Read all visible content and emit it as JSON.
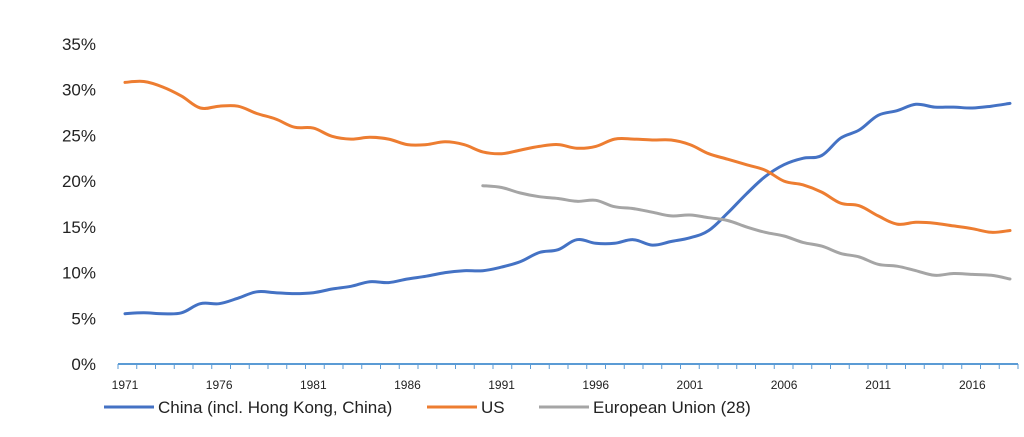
{
  "chart_data": {
    "type": "line",
    "title": "",
    "xlabel": "",
    "ylabel": "",
    "xlim": [
      1971,
      2018
    ],
    "ylim": [
      0,
      35
    ],
    "y_ticks": [
      0,
      5,
      10,
      15,
      20,
      25,
      30,
      35
    ],
    "y_tick_labels": [
      "0%",
      "5%",
      "10%",
      "15%",
      "20%",
      "25%",
      "30%",
      "35%"
    ],
    "x_tick_labels": [
      "1971",
      "1976",
      "1981",
      "1986",
      "1991",
      "1996",
      "2001",
      "2006",
      "2011",
      "2016"
    ],
    "x_ticks": [
      1971,
      1976,
      1981,
      1986,
      1991,
      1996,
      2001,
      2006,
      2011,
      2016
    ],
    "grid": false,
    "legend_position": "bottom",
    "series": [
      {
        "name": "China (incl. Hong Kong, China)",
        "color": "#4472c4",
        "x": [
          1971,
          1972,
          1973,
          1974,
          1975,
          1976,
          1977,
          1978,
          1979,
          1980,
          1981,
          1982,
          1983,
          1984,
          1985,
          1986,
          1987,
          1988,
          1989,
          1990,
          1991,
          1992,
          1993,
          1994,
          1995,
          1996,
          1997,
          1998,
          1999,
          2000,
          2001,
          2002,
          2003,
          2004,
          2005,
          2006,
          2007,
          2008,
          2009,
          2010,
          2011,
          2012,
          2013,
          2014,
          2015,
          2016,
          2017,
          2018
        ],
        "values": [
          5.5,
          5.6,
          5.5,
          5.6,
          6.6,
          6.6,
          7.2,
          7.9,
          7.8,
          7.7,
          7.8,
          8.2,
          8.5,
          9.0,
          8.9,
          9.3,
          9.6,
          10.0,
          10.2,
          10.2,
          10.6,
          11.2,
          12.2,
          12.5,
          13.6,
          13.2,
          13.2,
          13.6,
          13.0,
          13.4,
          13.8,
          14.6,
          16.5,
          18.6,
          20.5,
          21.8,
          22.5,
          22.8,
          24.7,
          25.6,
          27.2,
          27.7,
          28.4,
          28.1,
          28.1,
          28.0,
          28.2,
          28.5
        ]
      },
      {
        "name": "US",
        "color": "#ed7d31",
        "x": [
          1971,
          1972,
          1973,
          1974,
          1975,
          1976,
          1977,
          1978,
          1979,
          1980,
          1981,
          1982,
          1983,
          1984,
          1985,
          1986,
          1987,
          1988,
          1989,
          1990,
          1991,
          1992,
          1993,
          1994,
          1995,
          1996,
          1997,
          1998,
          1999,
          2000,
          2001,
          2002,
          2003,
          2004,
          2005,
          2006,
          2007,
          2008,
          2009,
          2010,
          2011,
          2012,
          2013,
          2014,
          2015,
          2016,
          2017,
          2018
        ],
        "values": [
          30.8,
          30.9,
          30.3,
          29.3,
          28.0,
          28.2,
          28.2,
          27.4,
          26.8,
          25.9,
          25.8,
          24.9,
          24.6,
          24.8,
          24.6,
          24.0,
          24.0,
          24.3,
          24.0,
          23.2,
          23.0,
          23.4,
          23.8,
          24.0,
          23.6,
          23.8,
          24.6,
          24.6,
          24.5,
          24.5,
          24.0,
          23.0,
          22.4,
          21.8,
          21.2,
          20.0,
          19.6,
          18.8,
          17.6,
          17.3,
          16.2,
          15.3,
          15.5,
          15.4,
          15.1,
          14.8,
          14.4,
          14.6
        ]
      },
      {
        "name": "European Union (28)",
        "color": "#a5a5a5",
        "x": [
          1990,
          1991,
          1992,
          1993,
          1994,
          1995,
          1996,
          1997,
          1998,
          1999,
          2000,
          2001,
          2002,
          2003,
          2004,
          2005,
          2006,
          2007,
          2008,
          2009,
          2010,
          2011,
          2012,
          2013,
          2014,
          2015,
          2016,
          2017,
          2018
        ],
        "values": [
          19.5,
          19.3,
          18.7,
          18.3,
          18.1,
          17.8,
          17.9,
          17.2,
          17.0,
          16.6,
          16.2,
          16.3,
          16.0,
          15.7,
          15.0,
          14.4,
          14.0,
          13.3,
          12.9,
          12.1,
          11.7,
          10.9,
          10.7,
          10.2,
          9.7,
          9.9,
          9.8,
          9.7,
          9.3
        ]
      }
    ]
  }
}
